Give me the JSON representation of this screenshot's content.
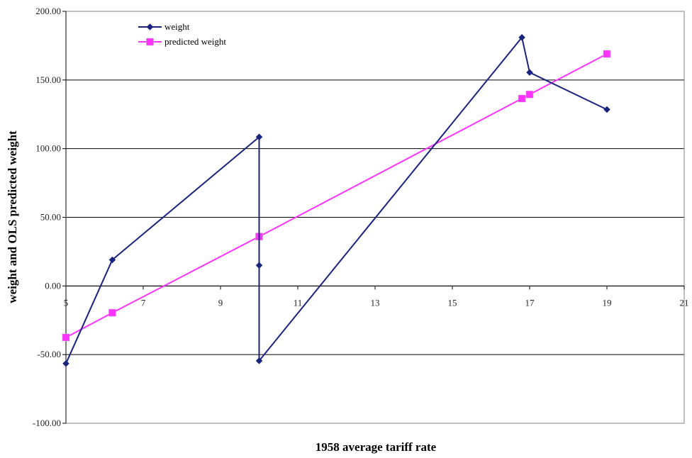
{
  "chart_data": {
    "type": "line",
    "title": "",
    "xlabel": "1958 average tariff rate",
    "ylabel": "weight and OLS predicted weight",
    "xlim": [
      5,
      21
    ],
    "ylim": [
      -100,
      200
    ],
    "x_ticks": [
      5,
      7,
      9,
      11,
      13,
      15,
      17,
      19,
      21
    ],
    "x_tick_labels": [
      "5",
      "7",
      "9",
      "11",
      "13",
      "15",
      "17",
      "19",
      "21"
    ],
    "y_ticks": [
      -100,
      -50,
      0,
      50,
      100,
      150,
      200
    ],
    "y_tick_labels": [
      "-100.00",
      "-50.00",
      "0.00",
      "50.00",
      "100.00",
      "150.00",
      "200.00"
    ],
    "grid": "horizontal",
    "legend_position": "top-left",
    "series": [
      {
        "name": "weight",
        "color": "#1a237e",
        "marker": "diamond",
        "points": [
          {
            "x": 5.0,
            "y": -56.5
          },
          {
            "x": 6.2,
            "y": 19.0
          },
          {
            "x": 10.0,
            "y": 108.5
          },
          {
            "x": 10.0,
            "y": 15.0
          },
          {
            "x": 10.0,
            "y": -54.5
          },
          {
            "x": 16.8,
            "y": 181.0
          },
          {
            "x": 17.0,
            "y": 155.5
          },
          {
            "x": 19.0,
            "y": 128.5
          }
        ]
      },
      {
        "name": "predicted weight",
        "color": "#ff33ff",
        "marker": "square",
        "points": [
          {
            "x": 5.0,
            "y": -37.5
          },
          {
            "x": 6.2,
            "y": -19.5
          },
          {
            "x": 10.0,
            "y": 36.0
          },
          {
            "x": 16.8,
            "y": 136.5
          },
          {
            "x": 17.0,
            "y": 139.5
          },
          {
            "x": 19.0,
            "y": 169.0
          }
        ]
      }
    ]
  }
}
